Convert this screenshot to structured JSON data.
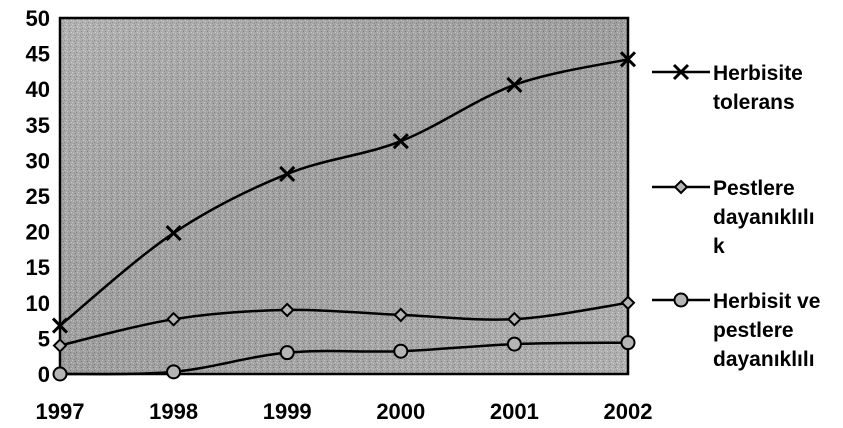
{
  "chart_data": {
    "type": "line",
    "title": "",
    "xlabel": "",
    "ylabel": "",
    "x": [
      "1997",
      "1998",
      "1999",
      "2000",
      "2001",
      "2002"
    ],
    "ylim": [
      0,
      50
    ],
    "yticks": [
      "0",
      "5",
      "10",
      "15",
      "20",
      "25",
      "30",
      "35",
      "40",
      "45",
      "50"
    ],
    "grid": false,
    "legend_position": "right",
    "background": "gray-textured",
    "series": [
      {
        "name": "Herbisite tolerans",
        "legend_lines": [
          "Herbisite",
          "tolerans"
        ],
        "marker": "x",
        "values": [
          6.8,
          19.8,
          28.1,
          32.7,
          40.6,
          44.2
        ]
      },
      {
        "name": "Pestlere dayanıklılık",
        "legend_lines": [
          "Pestlere",
          "dayanıklılı",
          "k"
        ],
        "marker": "diamond",
        "values": [
          4.0,
          7.7,
          9.0,
          8.3,
          7.7,
          10.0
        ]
      },
      {
        "name": "Herbisit ve pestlere dayanıklılık",
        "legend_lines": [
          "Herbisit ve",
          "pestlere",
          "dayanıklılı"
        ],
        "marker": "circle",
        "values": [
          0.0,
          0.3,
          3.0,
          3.2,
          4.2,
          4.4
        ]
      }
    ]
  }
}
